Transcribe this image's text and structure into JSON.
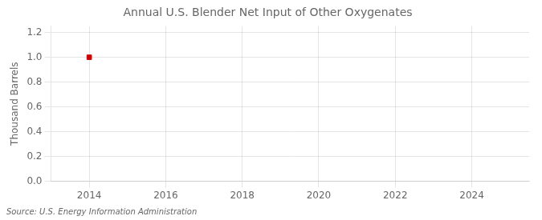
{
  "chart_data": {
    "type": "scatter",
    "title": "Annual U.S. Blender Net Input of Other Oxygenates",
    "ylabel": "Thousand Barrels",
    "annotations": [
      "Source: U.S. Energy Information Administration"
    ],
    "x": [
      2014
    ],
    "values": [
      1.0
    ],
    "color": "#CC0000",
    "marker": "square",
    "xlim": [
      2013.0,
      2025.5
    ],
    "xticks": [
      2014,
      2016,
      2018,
      2020,
      2022,
      2024
    ],
    "ylim": [
      0.0,
      1.25
    ],
    "yticks": [
      {
        "value": 0.0,
        "label": "0.0"
      },
      0.2,
      0.4,
      0.6,
      0.8,
      {
        "value": 1.0,
        "label": "1.0"
      },
      1.2
    ],
    "grid": true
  }
}
